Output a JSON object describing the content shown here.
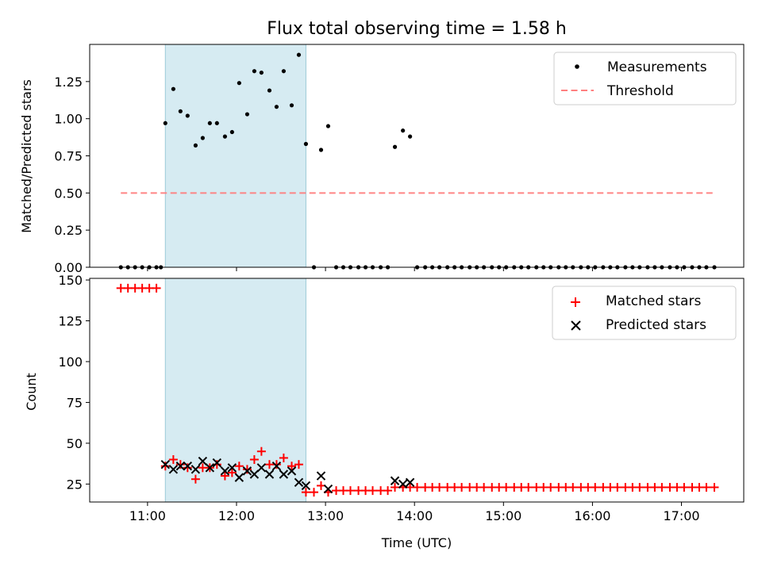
{
  "chart_data": [
    {
      "type": "scatter",
      "title": "Flux total observing time = 1.58 h",
      "xlabel": "",
      "ylabel": "Matched/Predicted stars",
      "xlim": [
        10.35,
        17.7
      ],
      "ylim": [
        0,
        1.5
      ],
      "yticks": [
        0.0,
        0.25,
        0.5,
        0.75,
        1.0,
        1.25
      ],
      "ytick_labels": [
        "0.00",
        "0.25",
        "0.50",
        "0.75",
        "1.00",
        "1.25"
      ],
      "shaded_span": [
        11.2,
        12.78
      ],
      "legend": {
        "location": "upper right",
        "entries": [
          "Measurements",
          "Threshold"
        ]
      },
      "threshold": {
        "name": "Threshold",
        "value": 0.5,
        "x": [
          10.7,
          17.37
        ],
        "color": "#ff7f7f"
      },
      "series": [
        {
          "name": "Measurements",
          "color": "#000000",
          "marker": "dot",
          "points": [
            [
              10.7,
              0
            ],
            [
              10.78,
              0
            ],
            [
              10.86,
              0
            ],
            [
              10.94,
              0
            ],
            [
              11.02,
              0
            ],
            [
              11.1,
              0
            ],
            [
              11.15,
              0
            ],
            [
              11.2,
              0.97
            ],
            [
              11.29,
              1.2
            ],
            [
              11.37,
              1.05
            ],
            [
              11.45,
              1.02
            ],
            [
              11.54,
              0.82
            ],
            [
              11.62,
              0.87
            ],
            [
              11.7,
              0.97
            ],
            [
              11.78,
              0.97
            ],
            [
              11.87,
              0.88
            ],
            [
              11.95,
              0.91
            ],
            [
              12.03,
              1.24
            ],
            [
              12.12,
              1.03
            ],
            [
              12.2,
              1.32
            ],
            [
              12.28,
              1.31
            ],
            [
              12.37,
              1.19
            ],
            [
              12.45,
              1.08
            ],
            [
              12.53,
              1.32
            ],
            [
              12.62,
              1.09
            ],
            [
              12.7,
              1.43
            ],
            [
              12.78,
              0.83
            ],
            [
              12.87,
              0
            ],
            [
              12.95,
              0.79
            ],
            [
              13.03,
              0.95
            ],
            [
              13.12,
              0
            ],
            [
              13.2,
              0
            ],
            [
              13.28,
              0
            ],
            [
              13.37,
              0
            ],
            [
              13.45,
              0
            ],
            [
              13.53,
              0
            ],
            [
              13.62,
              0
            ],
            [
              13.7,
              0
            ],
            [
              13.78,
              0.81
            ],
            [
              13.87,
              0.92
            ],
            [
              13.95,
              0.88
            ],
            [
              14.03,
              0
            ],
            [
              14.12,
              0
            ],
            [
              14.2,
              0
            ],
            [
              14.28,
              0
            ],
            [
              14.37,
              0
            ],
            [
              14.45,
              0
            ],
            [
              14.53,
              0
            ],
            [
              14.62,
              0
            ],
            [
              14.7,
              0
            ],
            [
              14.78,
              0
            ],
            [
              14.87,
              0
            ],
            [
              14.95,
              0
            ],
            [
              15.03,
              0
            ],
            [
              15.12,
              0
            ],
            [
              15.2,
              0
            ],
            [
              15.28,
              0
            ],
            [
              15.37,
              0
            ],
            [
              15.45,
              0
            ],
            [
              15.53,
              0
            ],
            [
              15.62,
              0
            ],
            [
              15.7,
              0
            ],
            [
              15.78,
              0
            ],
            [
              15.87,
              0
            ],
            [
              15.95,
              0
            ],
            [
              16.03,
              0
            ],
            [
              16.12,
              0
            ],
            [
              16.2,
              0
            ],
            [
              16.28,
              0
            ],
            [
              16.37,
              0
            ],
            [
              16.45,
              0
            ],
            [
              16.53,
              0
            ],
            [
              16.62,
              0
            ],
            [
              16.7,
              0
            ],
            [
              16.78,
              0
            ],
            [
              16.87,
              0
            ],
            [
              16.95,
              0
            ],
            [
              17.03,
              0
            ],
            [
              17.12,
              0
            ],
            [
              17.2,
              0
            ],
            [
              17.28,
              0
            ],
            [
              17.37,
              0
            ]
          ]
        }
      ]
    },
    {
      "type": "scatter",
      "title": "",
      "xlabel": "Time (UTC)",
      "ylabel": "Count",
      "xlim": [
        10.35,
        17.7
      ],
      "ylim": [
        14,
        151
      ],
      "xticks": [
        11,
        12,
        13,
        14,
        15,
        16,
        17
      ],
      "xtick_labels": [
        "11:00",
        "12:00",
        "13:00",
        "14:00",
        "15:00",
        "16:00",
        "17:00"
      ],
      "yticks": [
        25,
        50,
        75,
        100,
        125,
        150
      ],
      "ytick_labels": [
        "25",
        "50",
        "75",
        "100",
        "125",
        "150"
      ],
      "shaded_span": [
        11.2,
        12.78
      ],
      "legend": {
        "location": "upper right",
        "entries": [
          "Matched stars",
          "Predicted stars"
        ]
      },
      "series": [
        {
          "name": "Matched stars",
          "color": "#ff0000",
          "marker": "plus",
          "points": [
            [
              10.7,
              145
            ],
            [
              10.78,
              145
            ],
            [
              10.86,
              145
            ],
            [
              10.94,
              145
            ],
            [
              11.02,
              145
            ],
            [
              11.1,
              145
            ],
            [
              11.2,
              36
            ],
            [
              11.29,
              40
            ],
            [
              11.37,
              37
            ],
            [
              11.45,
              35
            ],
            [
              11.54,
              28
            ],
            [
              11.62,
              35
            ],
            [
              11.7,
              35
            ],
            [
              11.78,
              37
            ],
            [
              11.87,
              30
            ],
            [
              11.95,
              32
            ],
            [
              12.03,
              36
            ],
            [
              12.12,
              34
            ],
            [
              12.2,
              40
            ],
            [
              12.28,
              45
            ],
            [
              12.37,
              37
            ],
            [
              12.45,
              37
            ],
            [
              12.53,
              41
            ],
            [
              12.62,
              36
            ],
            [
              12.7,
              37
            ],
            [
              12.78,
              20
            ],
            [
              12.87,
              20
            ],
            [
              12.95,
              24
            ],
            [
              13.03,
              20
            ],
            [
              13.12,
              21
            ],
            [
              13.2,
              21
            ],
            [
              13.28,
              21
            ],
            [
              13.37,
              21
            ],
            [
              13.45,
              21
            ],
            [
              13.53,
              21
            ],
            [
              13.62,
              21
            ],
            [
              13.7,
              21
            ],
            [
              13.78,
              23
            ],
            [
              13.87,
              23
            ],
            [
              13.95,
              23
            ],
            [
              14.03,
              23
            ],
            [
              14.12,
              23
            ],
            [
              14.2,
              23
            ],
            [
              14.28,
              23
            ],
            [
              14.37,
              23
            ],
            [
              14.45,
              23
            ],
            [
              14.53,
              23
            ],
            [
              14.62,
              23
            ],
            [
              14.7,
              23
            ],
            [
              14.78,
              23
            ],
            [
              14.87,
              23
            ],
            [
              14.95,
              23
            ],
            [
              15.03,
              23
            ],
            [
              15.12,
              23
            ],
            [
              15.2,
              23
            ],
            [
              15.28,
              23
            ],
            [
              15.37,
              23
            ],
            [
              15.45,
              23
            ],
            [
              15.53,
              23
            ],
            [
              15.62,
              23
            ],
            [
              15.7,
              23
            ],
            [
              15.78,
              23
            ],
            [
              15.87,
              23
            ],
            [
              15.95,
              23
            ],
            [
              16.03,
              23
            ],
            [
              16.12,
              23
            ],
            [
              16.2,
              23
            ],
            [
              16.28,
              23
            ],
            [
              16.37,
              23
            ],
            [
              16.45,
              23
            ],
            [
              16.53,
              23
            ],
            [
              16.62,
              23
            ],
            [
              16.7,
              23
            ],
            [
              16.78,
              23
            ],
            [
              16.87,
              23
            ],
            [
              16.95,
              23
            ],
            [
              17.03,
              23
            ],
            [
              17.12,
              23
            ],
            [
              17.2,
              23
            ],
            [
              17.28,
              23
            ],
            [
              17.37,
              23
            ]
          ]
        },
        {
          "name": "Predicted stars",
          "color": "#000000",
          "marker": "x",
          "points": [
            [
              11.2,
              37
            ],
            [
              11.29,
              34
            ],
            [
              11.37,
              36
            ],
            [
              11.45,
              36
            ],
            [
              11.54,
              34
            ],
            [
              11.62,
              39
            ],
            [
              11.7,
              35
            ],
            [
              11.78,
              38
            ],
            [
              11.87,
              33
            ],
            [
              11.95,
              35
            ],
            [
              12.03,
              29
            ],
            [
              12.12,
              33
            ],
            [
              12.2,
              31
            ],
            [
              12.28,
              35
            ],
            [
              12.37,
              31
            ],
            [
              12.45,
              36
            ],
            [
              12.53,
              31
            ],
            [
              12.62,
              33
            ],
            [
              12.7,
              26
            ],
            [
              12.78,
              24
            ],
            [
              12.95,
              30
            ],
            [
              13.03,
              22
            ],
            [
              13.78,
              27
            ],
            [
              13.87,
              25
            ],
            [
              13.95,
              26
            ]
          ]
        }
      ]
    }
  ]
}
